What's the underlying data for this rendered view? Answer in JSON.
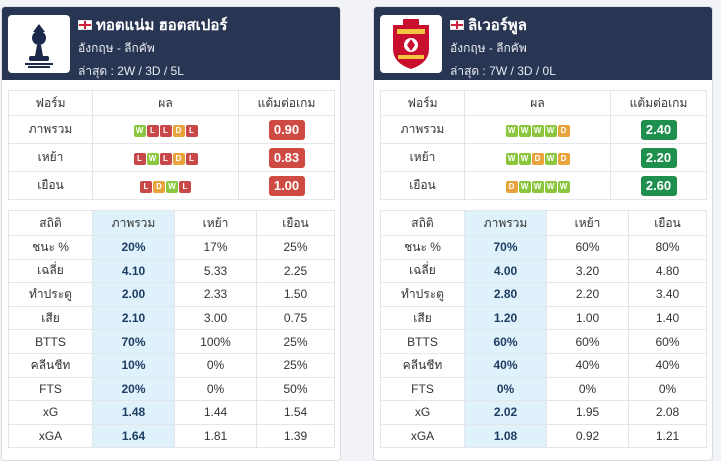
{
  "teams": [
    {
      "name": "ทอตแน่ม ฮอตสเปอร์",
      "country_league": "อังกฤษ - ลีกคัพ",
      "recent": "ล่าสุด : 2W / 3D / 5L",
      "logo": "tottenham-logo",
      "form_headers": [
        "ฟอร์ม",
        "ผล",
        "แต้มต่อเกม"
      ],
      "form_rows": [
        {
          "label": "ภาพรวม",
          "results": [
            "W",
            "L",
            "L",
            "D",
            "L"
          ],
          "ppg": "0.90",
          "ppg_color": "#cf4a43"
        },
        {
          "label": "เหย้า",
          "results": [
            "L",
            "W",
            "L",
            "D",
            "L"
          ],
          "ppg": "0.83",
          "ppg_color": "#cf4a43"
        },
        {
          "label": "เยือน",
          "results": [
            "L",
            "D",
            "W",
            "L"
          ],
          "ppg": "1.00",
          "ppg_color": "#cf4a43"
        }
      ],
      "stats_headers": [
        "สถิติ",
        "ภาพรวม",
        "เหย้า",
        "เยือน"
      ],
      "stats_rows": [
        [
          "ชนะ %",
          "20%",
          "17%",
          "25%"
        ],
        [
          "เฉลี่ย",
          "4.10",
          "5.33",
          "2.25"
        ],
        [
          "ทำประตู",
          "2.00",
          "2.33",
          "1.50"
        ],
        [
          "เสีย",
          "2.10",
          "3.00",
          "0.75"
        ],
        [
          "BTTS",
          "70%",
          "100%",
          "25%"
        ],
        [
          "คลีนชีท",
          "10%",
          "0%",
          "25%"
        ],
        [
          "FTS",
          "20%",
          "0%",
          "50%"
        ],
        [
          "xG",
          "1.48",
          "1.44",
          "1.54"
        ],
        [
          "xGA",
          "1.64",
          "1.81",
          "1.39"
        ]
      ]
    },
    {
      "name": "ลิเวอร์พูล",
      "country_league": "อังกฤษ - ลีกคัพ",
      "recent": "ล่าสุด : 7W / 3D / 0L",
      "logo": "liverpool-logo",
      "form_headers": [
        "ฟอร์ม",
        "ผล",
        "แต้มต่อเกม"
      ],
      "form_rows": [
        {
          "label": "ภาพรวม",
          "results": [
            "W",
            "W",
            "W",
            "W",
            "D"
          ],
          "ppg": "2.40",
          "ppg_color": "#1f8f4e"
        },
        {
          "label": "เหย้า",
          "results": [
            "W",
            "W",
            "D",
            "W",
            "D"
          ],
          "ppg": "2.20",
          "ppg_color": "#1f8f4e"
        },
        {
          "label": "เยือน",
          "results": [
            "D",
            "W",
            "W",
            "W",
            "W"
          ],
          "ppg": "2.60",
          "ppg_color": "#1f8f4e"
        }
      ],
      "stats_headers": [
        "สถิติ",
        "ภาพรวม",
        "เหย้า",
        "เยือน"
      ],
      "stats_rows": [
        [
          "ชนะ %",
          "70%",
          "60%",
          "80%"
        ],
        [
          "เฉลี่ย",
          "4.00",
          "3.20",
          "4.80"
        ],
        [
          "ทำประตู",
          "2.80",
          "2.20",
          "3.40"
        ],
        [
          "เสีย",
          "1.20",
          "1.00",
          "1.40"
        ],
        [
          "BTTS",
          "60%",
          "60%",
          "60%"
        ],
        [
          "คลีนชีท",
          "40%",
          "40%",
          "40%"
        ],
        [
          "FTS",
          "0%",
          "0%",
          "0%"
        ],
        [
          "xG",
          "2.02",
          "1.95",
          "2.08"
        ],
        [
          "xGA",
          "1.08",
          "0.92",
          "1.21"
        ]
      ]
    }
  ],
  "colors": {
    "header_bg": "#293653",
    "win": "#8cc63f",
    "draw": "#e8a33d",
    "loss": "#c8484a",
    "highlight_col": "#dff1fb"
  }
}
